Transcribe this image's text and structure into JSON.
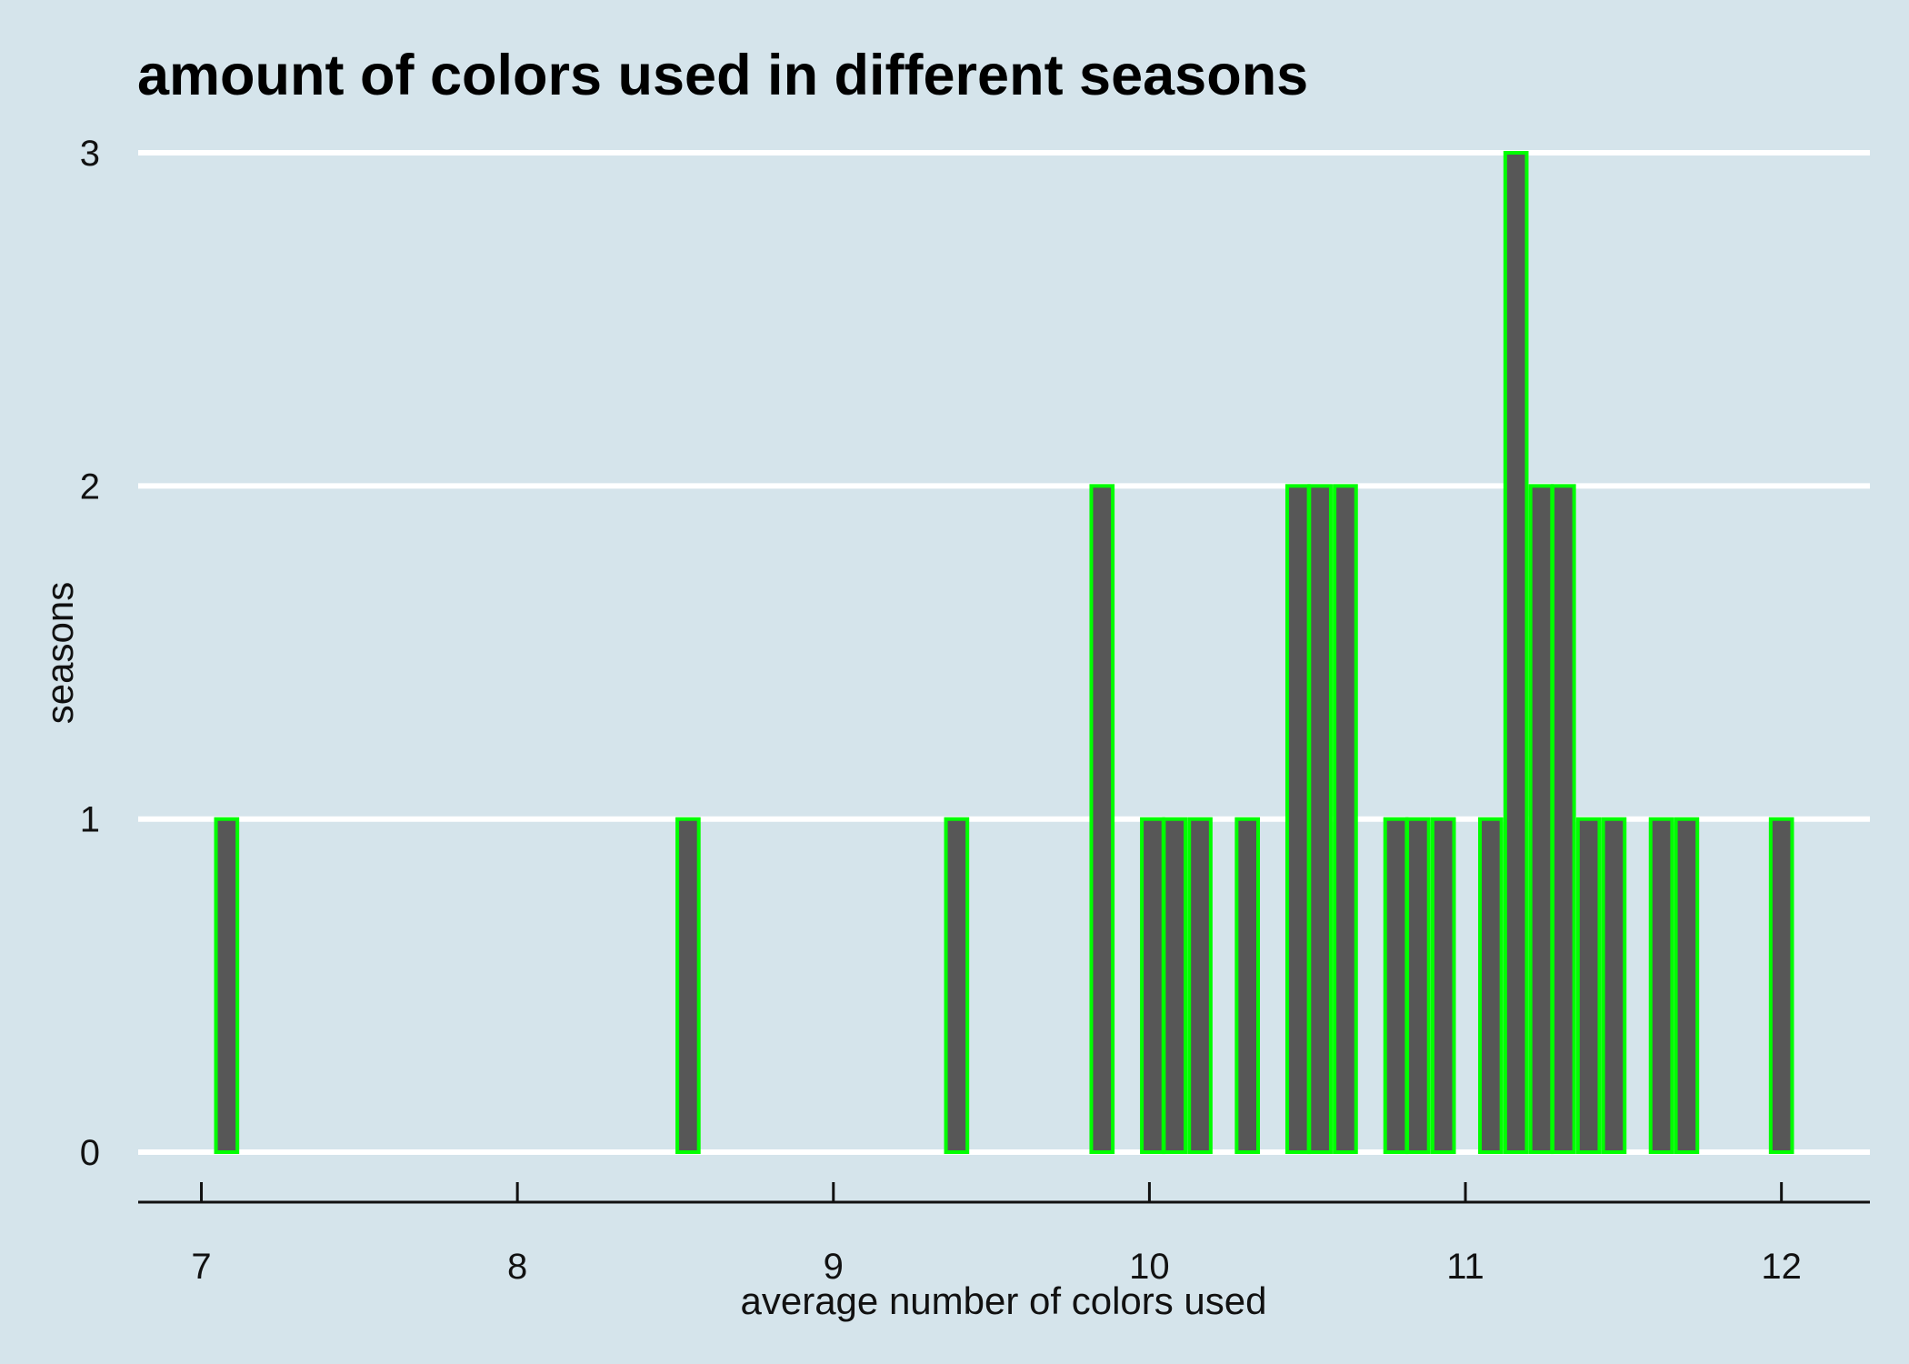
{
  "chart_data": {
    "type": "bar",
    "title": "amount of colors used in different seasons",
    "xlabel": "average number of colors used",
    "ylabel": "seasons",
    "xlim": [
      6.8,
      12.28
    ],
    "ylim": [
      -0.15,
      3
    ],
    "x_ticks": [
      7,
      8,
      9,
      10,
      11,
      12
    ],
    "y_ticks": [
      0,
      1,
      2,
      3
    ],
    "grid": "horizontal",
    "bar_width": 0.068,
    "colors": {
      "background": "#d5e4eb",
      "bar_fill": "#575757",
      "bar_outline": "#00ff00",
      "grid": "#ffffff",
      "axis": "#111111"
    },
    "bins": [
      {
        "x": 7.08,
        "count": 1
      },
      {
        "x": 8.54,
        "count": 1
      },
      {
        "x": 9.39,
        "count": 1
      },
      {
        "x": 9.85,
        "count": 2
      },
      {
        "x": 10.01,
        "count": 1
      },
      {
        "x": 10.08,
        "count": 1
      },
      {
        "x": 10.16,
        "count": 1
      },
      {
        "x": 10.31,
        "count": 1
      },
      {
        "x": 10.47,
        "count": 2
      },
      {
        "x": 10.54,
        "count": 2
      },
      {
        "x": 10.62,
        "count": 2
      },
      {
        "x": 10.78,
        "count": 1
      },
      {
        "x": 10.85,
        "count": 1
      },
      {
        "x": 10.93,
        "count": 1
      },
      {
        "x": 11.08,
        "count": 1
      },
      {
        "x": 11.16,
        "count": 3
      },
      {
        "x": 11.24,
        "count": 2
      },
      {
        "x": 11.31,
        "count": 2
      },
      {
        "x": 11.39,
        "count": 1
      },
      {
        "x": 11.47,
        "count": 1
      },
      {
        "x": 11.62,
        "count": 1
      },
      {
        "x": 11.7,
        "count": 1
      },
      {
        "x": 12.0,
        "count": 1
      }
    ]
  }
}
